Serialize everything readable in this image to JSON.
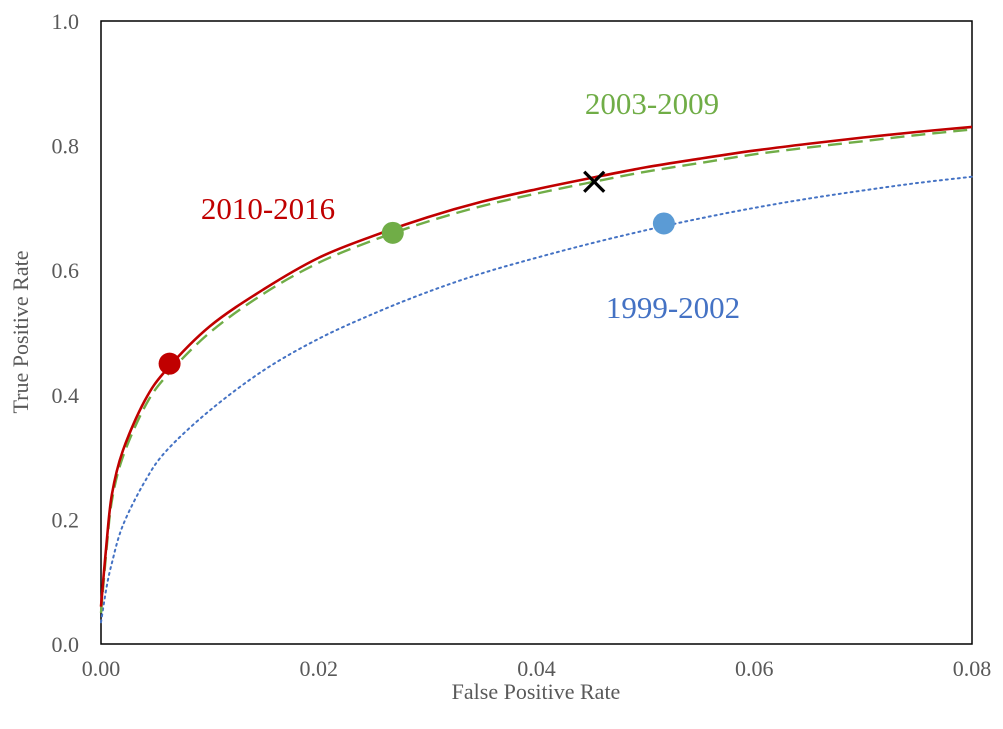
{
  "chart_data": {
    "type": "line",
    "title": "",
    "xlabel": "False Positive Rate",
    "ylabel": "True Positive Rate",
    "xlim": [
      0,
      0.08
    ],
    "ylim": [
      0,
      1.0
    ],
    "x_ticks": [
      "0.00",
      "0.02",
      "0.04",
      "0.06",
      "0.08"
    ],
    "y_ticks": [
      "0.0",
      "0.2",
      "0.4",
      "0.6",
      "0.8",
      "1.0"
    ],
    "grid": false,
    "legend": "none",
    "series": [
      {
        "name": "2010-2016",
        "color": "#c00000",
        "line_style": "solid",
        "x": [
          0,
          0.0005,
          0.001,
          0.002,
          0.004,
          0.006,
          0.01,
          0.015,
          0.02,
          0.025,
          0.03,
          0.035,
          0.04,
          0.045,
          0.05,
          0.055,
          0.06,
          0.065,
          0.07,
          0.075,
          0.08
        ],
        "y": [
          0.06,
          0.16,
          0.24,
          0.31,
          0.39,
          0.44,
          0.51,
          0.57,
          0.62,
          0.655,
          0.685,
          0.71,
          0.73,
          0.748,
          0.765,
          0.779,
          0.792,
          0.803,
          0.813,
          0.822,
          0.83
        ],
        "marker": {
          "x": 0.0063,
          "y": 0.45,
          "color": "#c00000"
        }
      },
      {
        "name": "2003-2009",
        "color": "#70ad47",
        "line_style": "dashed",
        "x": [
          0,
          0.0005,
          0.001,
          0.002,
          0.004,
          0.006,
          0.01,
          0.015,
          0.02,
          0.025,
          0.03,
          0.035,
          0.04,
          0.045,
          0.05,
          0.055,
          0.06,
          0.065,
          0.07,
          0.075,
          0.08
        ],
        "y": [
          0.05,
          0.15,
          0.23,
          0.3,
          0.38,
          0.43,
          0.5,
          0.563,
          0.612,
          0.648,
          0.678,
          0.703,
          0.723,
          0.741,
          0.758,
          0.772,
          0.786,
          0.797,
          0.807,
          0.817,
          0.826
        ],
        "marker": {
          "x": 0.0268,
          "y": 0.66,
          "color": "#70ad47"
        }
      },
      {
        "name": "1999-2002",
        "color": "#4472c4",
        "line_style": "dotted",
        "x": [
          0,
          0.0005,
          0.001,
          0.002,
          0.004,
          0.006,
          0.01,
          0.015,
          0.02,
          0.025,
          0.03,
          0.035,
          0.04,
          0.045,
          0.05,
          0.055,
          0.06,
          0.065,
          0.07,
          0.075,
          0.08
        ],
        "y": [
          0.035,
          0.09,
          0.13,
          0.19,
          0.26,
          0.31,
          0.375,
          0.44,
          0.49,
          0.53,
          0.565,
          0.595,
          0.62,
          0.643,
          0.664,
          0.683,
          0.7,
          0.715,
          0.728,
          0.74,
          0.75
        ],
        "marker": {
          "x": 0.0517,
          "y": 0.675,
          "color": "#5b9bd5"
        }
      }
    ],
    "cross_marker": {
      "x": 0.0453,
      "y": 0.742,
      "color": "#000000"
    }
  }
}
